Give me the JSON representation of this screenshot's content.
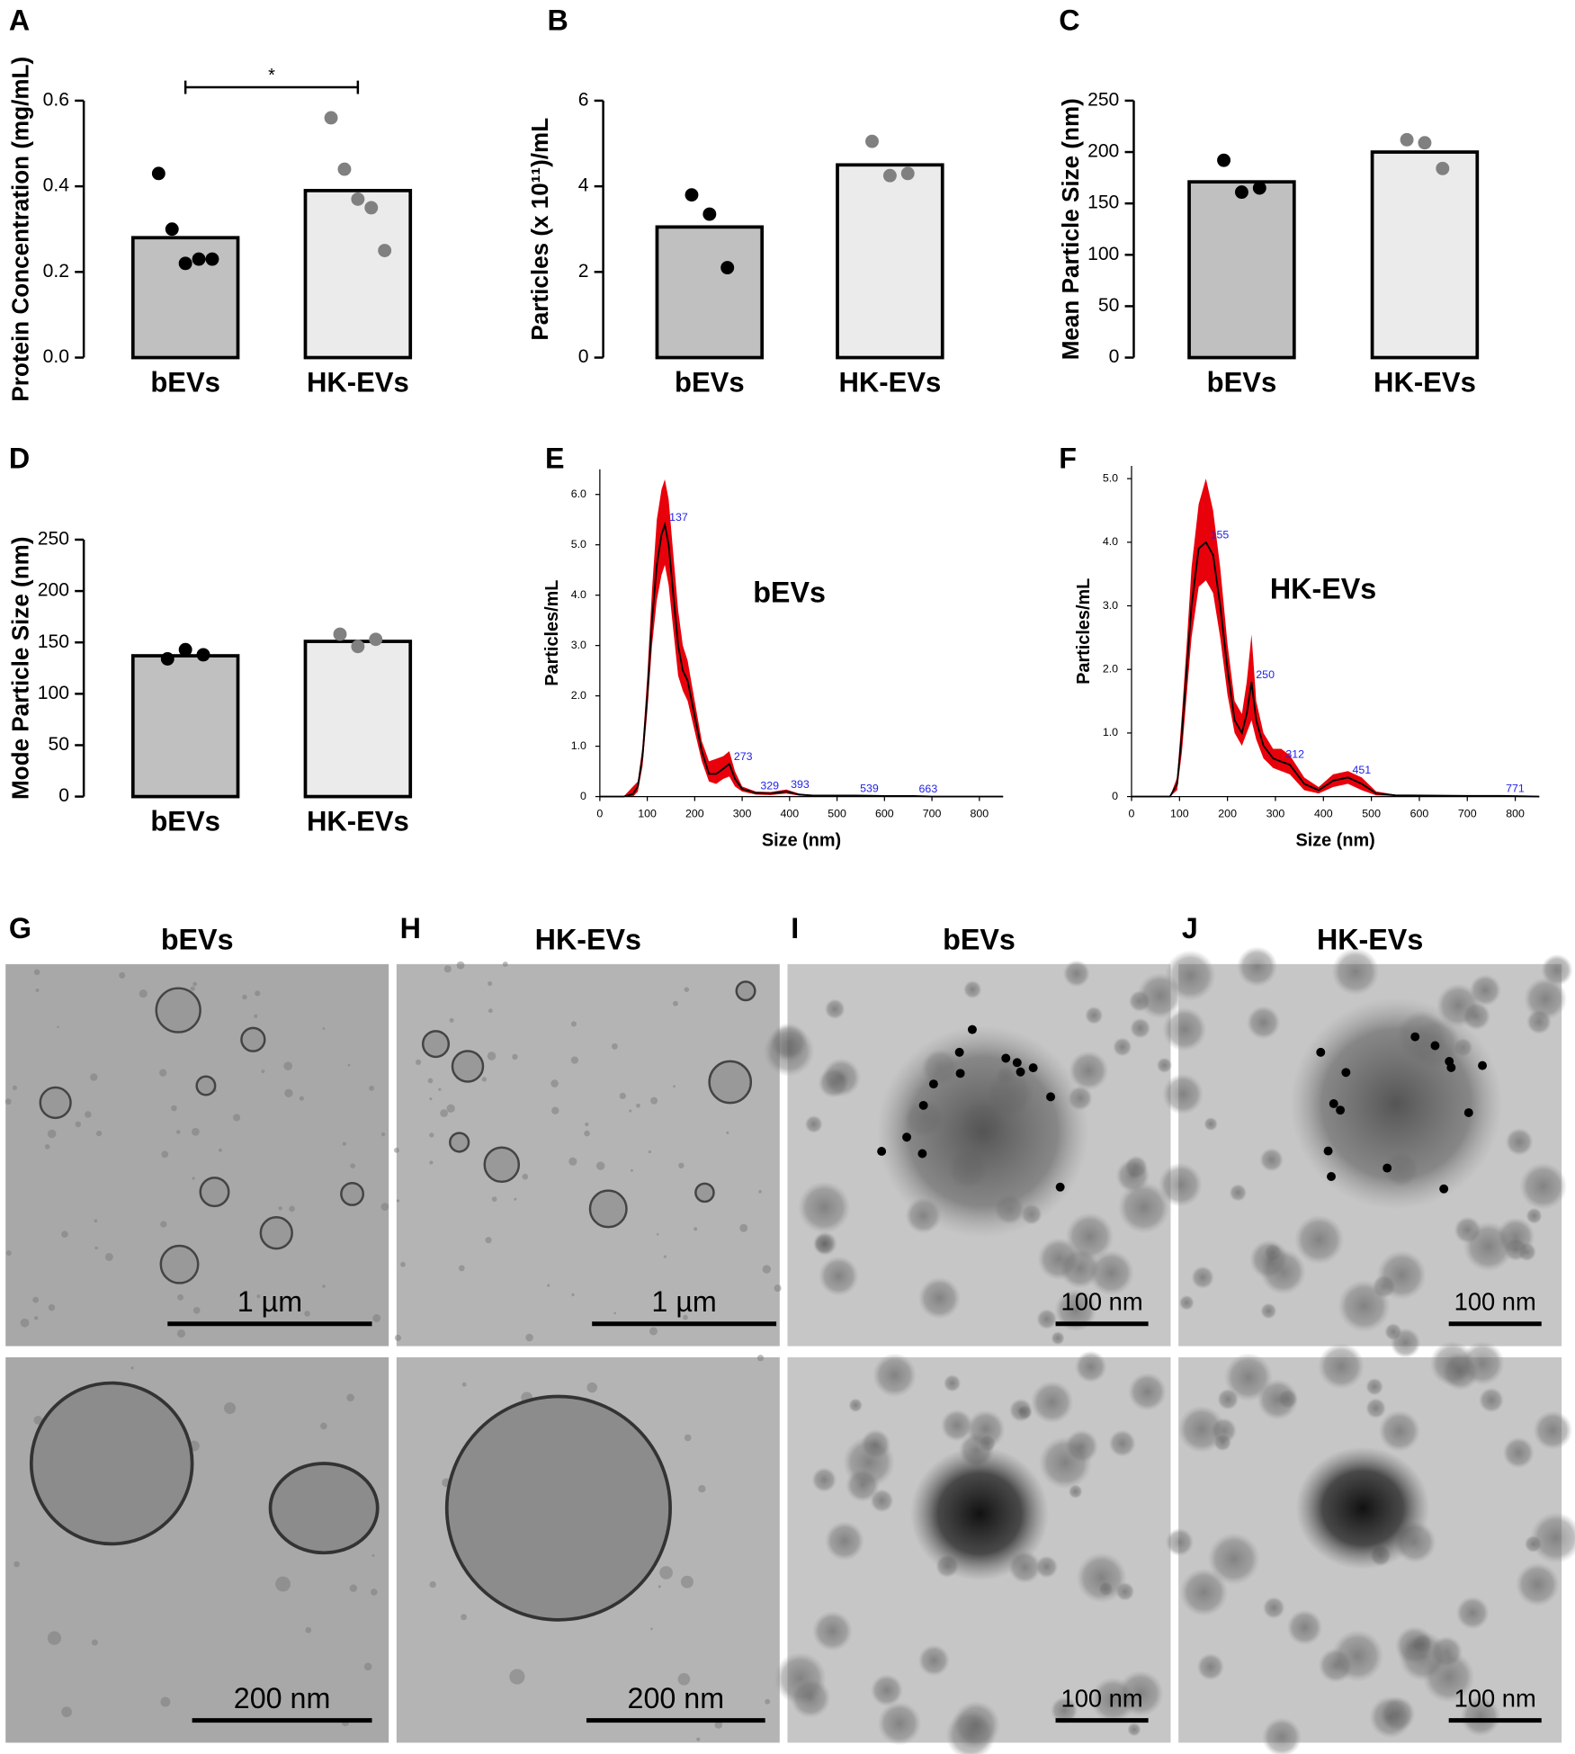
{
  "chart_data": [
    {
      "type": "bar",
      "panel": "A",
      "y_label": "Protein Concentration (mg/mL)",
      "categories": [
        "bEVs",
        "HK-EVs"
      ],
      "values": [
        0.28,
        0.39
      ],
      "colors": [
        "#c0c0c0",
        "#ebebeb"
      ],
      "points": [
        [
          0.43,
          0.3,
          0.22,
          0.23,
          0.23
        ],
        [
          0.56,
          0.44,
          0.37,
          0.35,
          0.25
        ]
      ],
      "point_colors": [
        "#000000",
        "#808080"
      ],
      "ylim": [
        0,
        0.6
      ],
      "yticks": [
        {
          "value": 0,
          "label": "0.0"
        },
        0.2,
        0.4,
        0.6
      ],
      "significance": "*"
    },
    {
      "type": "bar",
      "panel": "B",
      "y_label": "Particles (x 10¹¹)/mL",
      "categories": [
        "bEVs",
        "HK-EVs"
      ],
      "values": [
        3.05,
        4.5
      ],
      "colors": [
        "#c0c0c0",
        "#ebebeb"
      ],
      "points": [
        [
          3.8,
          3.35,
          2.1
        ],
        [
          5.05,
          4.25,
          4.3
        ]
      ],
      "point_colors": [
        "#000000",
        "#808080"
      ],
      "ylim": [
        0,
        6
      ],
      "yticks": [
        0,
        2,
        4,
        6
      ]
    },
    {
      "type": "bar",
      "panel": "C",
      "y_label": "Mean Particle Size (nm)",
      "categories": [
        "bEVs",
        "HK-EVs"
      ],
      "values": [
        171,
        200
      ],
      "colors": [
        "#c0c0c0",
        "#ebebeb"
      ],
      "points": [
        [
          192,
          161,
          165
        ],
        [
          212,
          209,
          184
        ]
      ],
      "point_colors": [
        "#000000",
        "#808080"
      ],
      "ylim": [
        0,
        250
      ],
      "yticks": [
        0,
        50,
        100,
        150,
        200,
        250
      ]
    },
    {
      "type": "bar",
      "panel": "D",
      "y_label": "Mode Particle Size (nm)",
      "categories": [
        "bEVs",
        "HK-EVs"
      ],
      "values": [
        137,
        151
      ],
      "colors": [
        "#c0c0c0",
        "#ebebeb"
      ],
      "points": [
        [
          134,
          143,
          138
        ],
        [
          158,
          146,
          153
        ]
      ],
      "point_colors": [
        "#000000",
        "#808080"
      ],
      "ylim": [
        0,
        250
      ],
      "yticks": [
        0,
        50,
        100,
        150,
        200,
        250
      ]
    },
    {
      "type": "line",
      "panel": "E",
      "title": "bEVs",
      "x_label": "Size (nm)",
      "y_label": "Particles/mL",
      "line_color": "#000000",
      "band_color": "#e8000b",
      "peak_color": "#2222ee",
      "x": [
        0,
        50,
        70,
        80,
        90,
        100,
        110,
        120,
        130,
        137,
        145,
        155,
        165,
        175,
        185,
        200,
        215,
        230,
        245,
        260,
        273,
        285,
        300,
        329,
        360,
        393,
        420,
        450,
        539,
        600,
        663,
        700,
        800,
        850
      ],
      "values": [
        0,
        0,
        0.05,
        0.2,
        0.8,
        2.0,
        3.5,
        4.6,
        5.2,
        5.4,
        5.0,
        4.0,
        3.0,
        2.5,
        2.3,
        1.6,
        0.9,
        0.45,
        0.45,
        0.55,
        0.65,
        0.35,
        0.15,
        0.07,
        0.06,
        0.1,
        0.04,
        0.02,
        0.02,
        0.01,
        0.01,
        0,
        0,
        0
      ],
      "upper": [
        0,
        0,
        0.2,
        0.3,
        1.0,
        2.4,
        4.1,
        5.5,
        6.1,
        6.3,
        5.9,
        4.8,
        3.7,
        3.0,
        2.7,
        1.9,
        1.1,
        0.7,
        0.75,
        0.8,
        0.9,
        0.5,
        0.2,
        0.1,
        0.09,
        0.14,
        0.06,
        0.03,
        0.03,
        0.02,
        0.02,
        0,
        0,
        0
      ],
      "lower": [
        0,
        0,
        0,
        0.1,
        0.6,
        1.7,
        3.0,
        3.9,
        4.4,
        4.6,
        4.2,
        3.3,
        2.4,
        2.1,
        1.9,
        1.3,
        0.7,
        0.3,
        0.25,
        0.35,
        0.4,
        0.2,
        0.1,
        0.04,
        0.03,
        0.06,
        0.02,
        0.01,
        0.01,
        0,
        0,
        0,
        0,
        0
      ],
      "peaks": [
        137,
        273,
        329,
        393,
        539,
        663
      ],
      "xlim": [
        0,
        850
      ],
      "xticks": [
        0,
        100,
        200,
        300,
        400,
        500,
        600,
        700,
        800
      ],
      "ylim": [
        0,
        6.5
      ],
      "yticks": [
        0,
        {
          "value": 1,
          "label": "1.0"
        },
        {
          "value": 2,
          "label": "2.0"
        },
        {
          "value": 3,
          "label": "3.0"
        },
        {
          "value": 4,
          "label": "4.0"
        },
        {
          "value": 5,
          "label": "5.0"
        },
        {
          "value": 6,
          "label": "6.0"
        }
      ]
    },
    {
      "type": "line",
      "panel": "F",
      "title": "HK-EVs",
      "x_label": "Size (nm)",
      "y_label": "Particles/mL",
      "line_color": "#000000",
      "band_color": "#e8000b",
      "peak_color": "#2222ee",
      "x": [
        0,
        80,
        95,
        105,
        115,
        125,
        140,
        155,
        170,
        185,
        200,
        215,
        230,
        240,
        250,
        260,
        275,
        295,
        312,
        330,
        360,
        390,
        420,
        451,
        480,
        510,
        550,
        700,
        771,
        850
      ],
      "values": [
        0,
        0,
        0.2,
        1.0,
        2.0,
        3.0,
        3.9,
        4.0,
        3.8,
        3.0,
        2.0,
        1.2,
        1.0,
        1.3,
        1.8,
        1.2,
        0.8,
        0.6,
        0.55,
        0.5,
        0.2,
        0.1,
        0.25,
        0.3,
        0.2,
        0.05,
        0.02,
        0.01,
        0.01,
        0
      ],
      "upper": [
        0,
        0,
        0.3,
        1.3,
        2.4,
        3.6,
        4.6,
        5.0,
        4.5,
        3.6,
        2.4,
        1.5,
        1.3,
        1.8,
        2.55,
        1.5,
        1.0,
        0.75,
        0.75,
        0.65,
        0.3,
        0.15,
        0.35,
        0.4,
        0.3,
        0.08,
        0.03,
        0.02,
        0.02,
        0
      ],
      "lower": [
        0,
        0,
        0.1,
        0.7,
        1.6,
        2.5,
        3.3,
        3.4,
        3.2,
        2.5,
        1.6,
        1.0,
        0.8,
        1.0,
        1.2,
        0.9,
        0.6,
        0.45,
        0.4,
        0.35,
        0.1,
        0.05,
        0.15,
        0.2,
        0.1,
        0.02,
        0.01,
        0,
        0,
        0
      ],
      "peaks": [
        155,
        250,
        312,
        451,
        771
      ],
      "xlim": [
        0,
        850
      ],
      "xticks": [
        0,
        100,
        200,
        300,
        400,
        500,
        600,
        700,
        800
      ],
      "ylim": [
        0,
        5.2
      ],
      "yticks": [
        0,
        {
          "value": 1,
          "label": "1.0"
        },
        {
          "value": 2,
          "label": "2.0"
        },
        {
          "value": 3,
          "label": "3.0"
        },
        {
          "value": 4,
          "label": "4.0"
        },
        {
          "value": 5,
          "label": "5.0"
        }
      ]
    }
  ],
  "micrographs": [
    {
      "panel": "G",
      "title": "bEVs",
      "scale_bars": [
        "1 µm",
        "200 nm"
      ]
    },
    {
      "panel": "H",
      "title": "HK-EVs",
      "scale_bars": [
        "1 µm",
        "200 nm"
      ]
    },
    {
      "panel": "I",
      "title": "bEVs",
      "scale_bars": [
        "100 nm",
        "100 nm"
      ]
    },
    {
      "panel": "J",
      "title": "HK-EVs",
      "scale_bars": [
        "100 nm",
        "100 nm"
      ]
    }
  ]
}
